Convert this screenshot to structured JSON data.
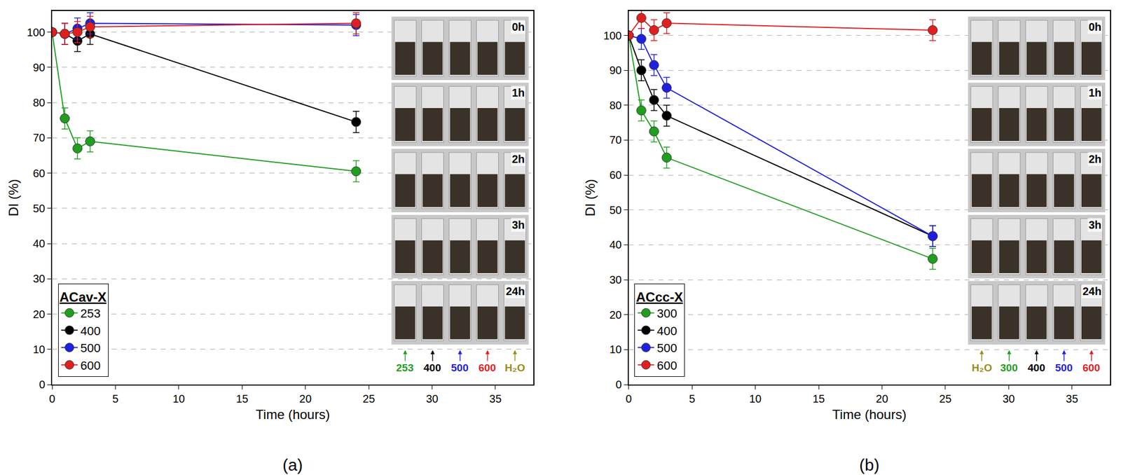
{
  "chart_data": [
    {
      "type": "line",
      "title": "(a)",
      "x_label": "Time (hours)",
      "y_label": "DI (%)",
      "legend_title": "ACav-X",
      "legend": "lower left",
      "marker": "circle",
      "grid": true,
      "x": [
        0,
        1,
        2,
        3,
        24
      ],
      "series": [
        {
          "name": "253",
          "color": "#1f9e1f",
          "values": [
            100,
            75.5,
            67,
            69,
            60.5
          ],
          "errors": [
            0,
            3,
            3,
            3,
            3
          ]
        },
        {
          "name": "400",
          "color": "#000000",
          "values": [
            100,
            99.5,
            97.5,
            99.5,
            74.5
          ],
          "errors": [
            0,
            3,
            3,
            3,
            3
          ]
        },
        {
          "name": "500",
          "color": "#1f1fe0",
          "values": [
            100,
            99.5,
            101,
            102.5,
            102
          ],
          "errors": [
            0,
            3,
            3,
            3,
            3
          ]
        },
        {
          "name": "600",
          "color": "#e01f1f",
          "values": [
            100,
            99.5,
            100,
            101.5,
            102.5
          ],
          "errors": [
            0,
            3,
            3,
            3,
            3
          ]
        }
      ],
      "xlim": [
        0,
        38
      ],
      "xticks": [
        0,
        5,
        10,
        15,
        20,
        25,
        30,
        35
      ],
      "ylim": [
        0,
        106
      ],
      "yticks": [
        0,
        10,
        20,
        30,
        40,
        50,
        60,
        70,
        80,
        90,
        100
      ],
      "inset": {
        "times": [
          "0h",
          "1h",
          "2h",
          "3h",
          "24h"
        ],
        "samples": [
          {
            "name": "253",
            "color": "#1f9e1f"
          },
          {
            "name": "400",
            "color": "#000000"
          },
          {
            "name": "500",
            "color": "#1f1fe0"
          },
          {
            "name": "600",
            "color": "#e01f1f"
          },
          {
            "name": "H₂O",
            "color": "#9a8a20"
          }
        ]
      }
    },
    {
      "type": "line",
      "title": "(b)",
      "x_label": "Time (hours)",
      "y_label": "DI (%)",
      "legend_title": "ACcc-X",
      "legend": "lower left",
      "marker": "circle",
      "grid": true,
      "x": [
        0,
        1,
        2,
        3,
        24
      ],
      "series": [
        {
          "name": "300",
          "color": "#1f9e1f",
          "values": [
            100,
            78.5,
            72.5,
            65,
            36
          ],
          "errors": [
            0,
            3,
            3,
            3,
            3
          ]
        },
        {
          "name": "400",
          "color": "#000000",
          "values": [
            100,
            90,
            81.5,
            77,
            42.5
          ],
          "errors": [
            0,
            3,
            3,
            3,
            3
          ]
        },
        {
          "name": "500",
          "color": "#1f1fe0",
          "values": [
            100,
            99,
            91.5,
            85,
            42.5
          ],
          "errors": [
            0,
            3,
            3,
            3,
            3
          ]
        },
        {
          "name": "600",
          "color": "#e01f1f",
          "values": [
            100,
            105,
            101.5,
            103.5,
            101.5
          ],
          "errors": [
            0,
            3,
            3,
            3,
            3
          ]
        }
      ],
      "xlim": [
        0,
        38
      ],
      "xticks": [
        0,
        5,
        10,
        15,
        20,
        25,
        30,
        35
      ],
      "ylim": [
        0,
        107
      ],
      "yticks": [
        0,
        10,
        20,
        30,
        40,
        50,
        60,
        70,
        80,
        90,
        100
      ],
      "inset": {
        "times": [
          "0h",
          "1h",
          "2h",
          "3h",
          "24h"
        ],
        "samples": [
          {
            "name": "H₂O",
            "color": "#9a8a20"
          },
          {
            "name": "300",
            "color": "#1f9e1f"
          },
          {
            "name": "400",
            "color": "#000000"
          },
          {
            "name": "500",
            "color": "#1f1fe0"
          },
          {
            "name": "600",
            "color": "#e01f1f"
          }
        ]
      }
    }
  ]
}
